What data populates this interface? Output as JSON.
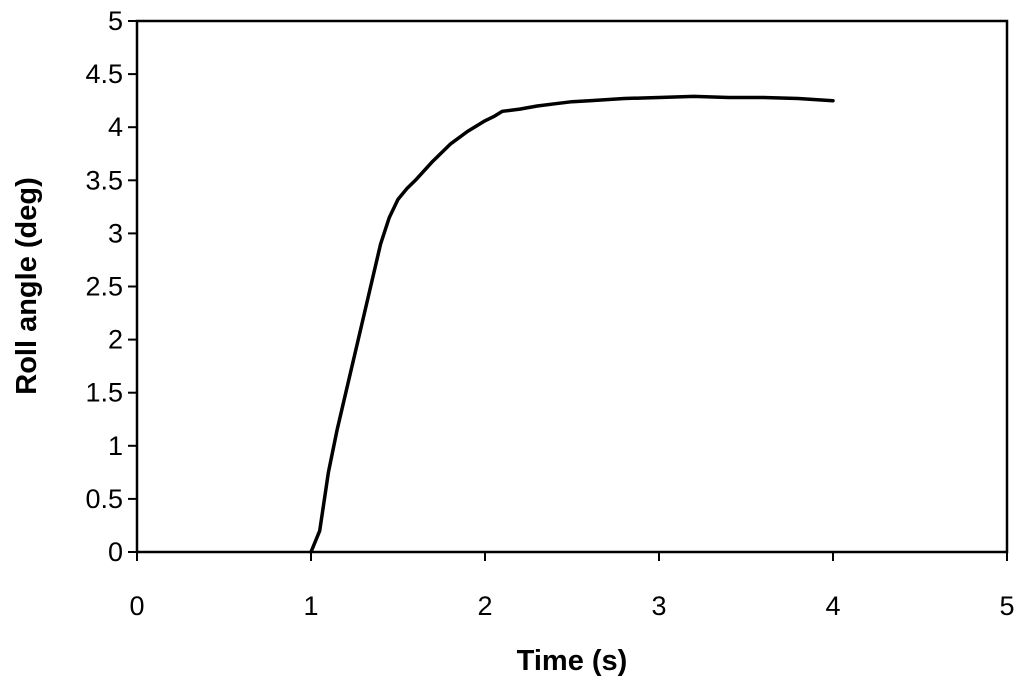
{
  "chart_data": {
    "type": "line",
    "title": "",
    "xlabel": "Time (s)",
    "ylabel": "Roll angle (deg)",
    "xlim": [
      0,
      5
    ],
    "ylim": [
      0,
      5
    ],
    "xticks": [
      "0",
      "1",
      "2",
      "3",
      "4",
      "5"
    ],
    "yticks": [
      "0",
      "0.5",
      "1",
      "1.5",
      "2",
      "2.5",
      "3",
      "3.5",
      "4",
      "4.5",
      "5"
    ],
    "grid": false,
    "legend": "none",
    "line_color": "#000000",
    "series": [
      {
        "x": [
          1.0,
          1.05,
          1.1,
          1.15,
          1.2,
          1.3,
          1.4,
          1.45,
          1.5,
          1.55,
          1.6,
          1.7,
          1.8,
          1.9,
          2.0,
          2.05,
          2.1,
          2.2,
          2.3,
          2.4,
          2.5,
          2.6,
          2.7,
          2.8,
          3.0,
          3.2,
          3.4,
          3.6,
          3.8,
          4.0
        ],
        "y": [
          0.0,
          0.2,
          0.75,
          1.15,
          1.5,
          2.2,
          2.9,
          3.15,
          3.32,
          3.42,
          3.5,
          3.68,
          3.84,
          3.96,
          4.06,
          4.1,
          4.15,
          4.17,
          4.2,
          4.22,
          4.24,
          4.25,
          4.26,
          4.27,
          4.28,
          4.29,
          4.28,
          4.28,
          4.27,
          4.25
        ]
      }
    ]
  }
}
